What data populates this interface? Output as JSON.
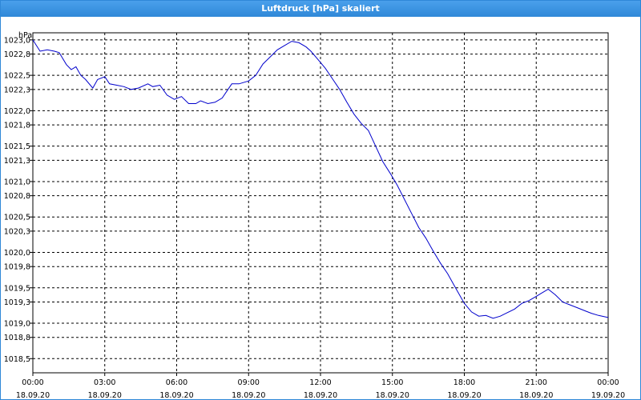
{
  "window": {
    "title": "Luftdruck [hPa] skaliert"
  },
  "colors": {
    "titlebar": "#2f88d8",
    "line": "#0000cc",
    "grid": "#000000"
  },
  "chart_data": {
    "type": "line",
    "title": "Luftdruck [hPa] skaliert",
    "ylabel": "hPa",
    "xlabel": "",
    "ylim": [
      1018.3,
      1023.1
    ],
    "xlim": [
      0,
      24
    ],
    "y_ticks": [
      {
        "value": 1023.0,
        "label": "1023,0"
      },
      {
        "value": 1022.8,
        "label": "1022,8"
      },
      {
        "value": 1022.5,
        "label": "1022,5"
      },
      {
        "value": 1022.3,
        "label": "1022,3"
      },
      {
        "value": 1022.0,
        "label": "1022,0"
      },
      {
        "value": 1021.8,
        "label": "1021,8"
      },
      {
        "value": 1021.5,
        "label": "1021,5"
      },
      {
        "value": 1021.3,
        "label": "1021,3"
      },
      {
        "value": 1021.0,
        "label": "1021,0"
      },
      {
        "value": 1020.8,
        "label": "1020,8"
      },
      {
        "value": 1020.5,
        "label": "1020,5"
      },
      {
        "value": 1020.3,
        "label": "1020,3"
      },
      {
        "value": 1020.0,
        "label": "1020,0"
      },
      {
        "value": 1019.8,
        "label": "1019,8"
      },
      {
        "value": 1019.5,
        "label": "1019,5"
      },
      {
        "value": 1019.3,
        "label": "1019,3"
      },
      {
        "value": 1019.0,
        "label": "1019,0"
      },
      {
        "value": 1018.8,
        "label": "1018,8"
      },
      {
        "value": 1018.5,
        "label": "1018,5"
      }
    ],
    "x_ticks": [
      {
        "value": 0,
        "time": "00:00",
        "date": "18.09.20"
      },
      {
        "value": 3,
        "time": "03:00",
        "date": "18.09.20"
      },
      {
        "value": 6,
        "time": "06:00",
        "date": "18.09.20"
      },
      {
        "value": 9,
        "time": "09:00",
        "date": "18.09.20"
      },
      {
        "value": 12,
        "time": "12:00",
        "date": "18.09.20"
      },
      {
        "value": 15,
        "time": "15:00",
        "date": "18.09.20"
      },
      {
        "value": 18,
        "time": "18:00",
        "date": "18.09.20"
      },
      {
        "value": 21,
        "time": "21:00",
        "date": "18.09.20"
      },
      {
        "value": 24,
        "time": "00:00",
        "date": "19.09.20"
      }
    ],
    "grid": true,
    "series": [
      {
        "points": [
          [
            0.0,
            1023.0
          ],
          [
            0.3,
            1022.84
          ],
          [
            0.6,
            1022.86
          ],
          [
            0.9,
            1022.84
          ],
          [
            1.1,
            1022.82
          ],
          [
            1.4,
            1022.65
          ],
          [
            1.6,
            1022.58
          ],
          [
            1.8,
            1022.62
          ],
          [
            2.0,
            1022.5
          ],
          [
            2.2,
            1022.44
          ],
          [
            2.5,
            1022.32
          ],
          [
            2.7,
            1022.44
          ],
          [
            3.0,
            1022.48
          ],
          [
            3.2,
            1022.38
          ],
          [
            3.5,
            1022.36
          ],
          [
            3.8,
            1022.34
          ],
          [
            4.1,
            1022.3
          ],
          [
            4.4,
            1022.32
          ],
          [
            4.8,
            1022.38
          ],
          [
            5.0,
            1022.34
          ],
          [
            5.3,
            1022.36
          ],
          [
            5.6,
            1022.22
          ],
          [
            5.9,
            1022.16
          ],
          [
            6.2,
            1022.2
          ],
          [
            6.5,
            1022.1
          ],
          [
            6.8,
            1022.1
          ],
          [
            7.0,
            1022.14
          ],
          [
            7.3,
            1022.1
          ],
          [
            7.6,
            1022.12
          ],
          [
            7.9,
            1022.18
          ],
          [
            8.3,
            1022.38
          ],
          [
            8.6,
            1022.38
          ],
          [
            9.0,
            1022.42
          ],
          [
            9.3,
            1022.5
          ],
          [
            9.6,
            1022.66
          ],
          [
            9.9,
            1022.76
          ],
          [
            10.2,
            1022.86
          ],
          [
            10.5,
            1022.92
          ],
          [
            10.8,
            1022.98
          ],
          [
            11.1,
            1022.96
          ],
          [
            11.4,
            1022.9
          ],
          [
            11.6,
            1022.84
          ],
          [
            11.9,
            1022.72
          ],
          [
            12.2,
            1022.6
          ],
          [
            12.5,
            1022.45
          ],
          [
            12.8,
            1022.3
          ],
          [
            13.1,
            1022.12
          ],
          [
            13.4,
            1021.95
          ],
          [
            13.7,
            1021.82
          ],
          [
            14.0,
            1021.72
          ],
          [
            14.3,
            1021.5
          ],
          [
            14.6,
            1021.28
          ],
          [
            14.9,
            1021.12
          ],
          [
            15.2,
            1020.95
          ],
          [
            15.5,
            1020.75
          ],
          [
            15.8,
            1020.55
          ],
          [
            16.1,
            1020.35
          ],
          [
            16.4,
            1020.2
          ],
          [
            16.7,
            1020.02
          ],
          [
            17.0,
            1019.85
          ],
          [
            17.3,
            1019.7
          ],
          [
            17.6,
            1019.52
          ],
          [
            18.0,
            1019.28
          ],
          [
            18.3,
            1019.16
          ],
          [
            18.6,
            1019.1
          ],
          [
            18.9,
            1019.11
          ],
          [
            19.2,
            1019.07
          ],
          [
            19.5,
            1019.1
          ],
          [
            19.8,
            1019.15
          ],
          [
            20.1,
            1019.2
          ],
          [
            20.4,
            1019.28
          ],
          [
            20.7,
            1019.32
          ],
          [
            21.0,
            1019.38
          ],
          [
            21.2,
            1019.42
          ],
          [
            21.5,
            1019.48
          ],
          [
            21.8,
            1019.4
          ],
          [
            22.1,
            1019.3
          ],
          [
            22.4,
            1019.26
          ],
          [
            22.7,
            1019.22
          ],
          [
            23.0,
            1019.18
          ],
          [
            23.3,
            1019.14
          ],
          [
            23.6,
            1019.11
          ],
          [
            24.0,
            1019.08
          ]
        ]
      }
    ]
  }
}
